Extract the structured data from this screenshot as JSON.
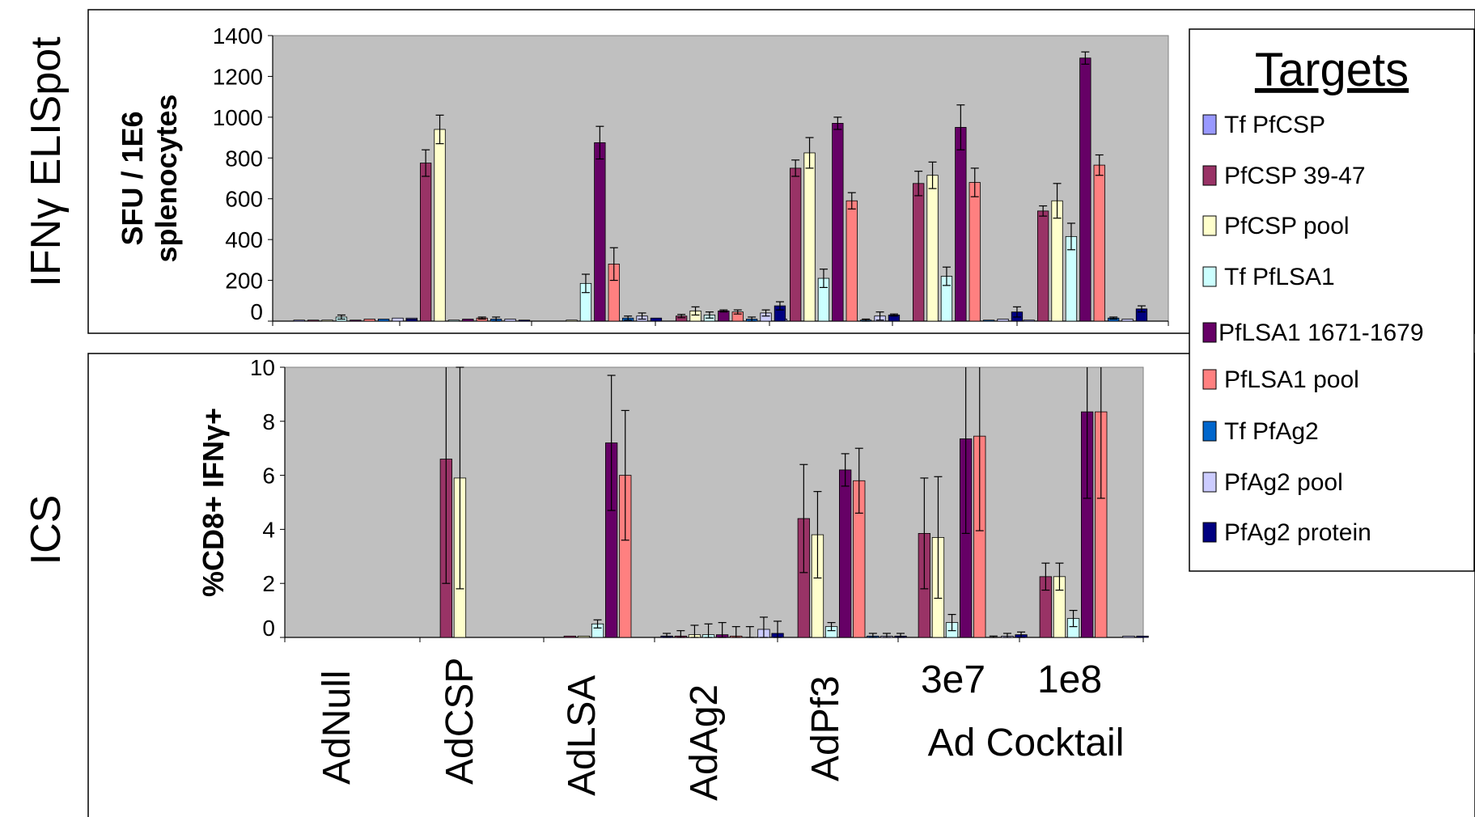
{
  "row_labels": {
    "elispot": "IFNγ ELISpot",
    "ics": "ICS"
  },
  "x_labels": [
    "AdNull",
    "AdCSP",
    "AdLSA",
    "AdAg2",
    "AdPf3",
    "3e7",
    "1e8"
  ],
  "cocktail_label": "Ad Cocktail",
  "legend": {
    "title": "Targets",
    "items": [
      {
        "label": "Tf PfCSP",
        "color": "#9999ff"
      },
      {
        "label": "PfCSP 39-47",
        "color": "#993366"
      },
      {
        "label": "PfCSP pool",
        "color": "#ffffcc"
      },
      {
        "label": "Tf PfLSA1",
        "color": "#ccffff"
      },
      {
        "label": "PfLSA1 1671-1679",
        "color": "#660066"
      },
      {
        "label": "PfLSA1 pool",
        "color": "#ff8080"
      },
      {
        "label": "Tf PfAg2",
        "color": "#0066cc"
      },
      {
        "label": "PfAg2 pool",
        "color": "#ccccff"
      },
      {
        "label": "PfAg2 protein",
        "color": "#000080"
      }
    ]
  },
  "chart_data": [
    {
      "type": "bar",
      "name": "elispot",
      "ylabel": [
        "SFU / 1E6",
        "splenocytes"
      ],
      "ylim": [
        0,
        1400
      ],
      "yticks": [
        0,
        200,
        400,
        600,
        800,
        1000,
        1200,
        1400
      ],
      "categories": [
        "AdNull",
        "AdCSP",
        "AdLSA",
        "AdAg2",
        "AdPf3",
        "3e7",
        "1e8"
      ],
      "series": [
        {
          "name": "Tf PfCSP",
          "values": [
            5,
            15,
            0,
            0,
            10,
            0,
            5
          ],
          "errors": [
            0,
            0,
            0,
            0,
            0,
            0,
            0
          ]
        },
        {
          "name": "PfCSP 39-47",
          "values": [
            5,
            775,
            0,
            25,
            750,
            675,
            540
          ],
          "errors": [
            0,
            65,
            0,
            8,
            40,
            60,
            25
          ]
        },
        {
          "name": "PfCSP pool",
          "values": [
            5,
            940,
            5,
            50,
            825,
            715,
            590
          ],
          "errors": [
            0,
            70,
            0,
            20,
            75,
            65,
            85
          ]
        },
        {
          "name": "Tf PfLSA1",
          "values": [
            20,
            5,
            185,
            30,
            210,
            220,
            415
          ],
          "errors": [
            10,
            0,
            45,
            15,
            45,
            45,
            65
          ]
        },
        {
          "name": "PfLSA1 1671-1679",
          "values": [
            5,
            10,
            875,
            50,
            970,
            950,
            1290
          ],
          "errors": [
            0,
            0,
            80,
            5,
            30,
            110,
            30
          ]
        },
        {
          "name": "PfLSA1 pool",
          "values": [
            10,
            15,
            280,
            45,
            590,
            680,
            765
          ],
          "errors": [
            0,
            5,
            80,
            10,
            40,
            70,
            50
          ]
        },
        {
          "name": "Tf PfAg2",
          "values": [
            10,
            10,
            15,
            10,
            5,
            5,
            15
          ],
          "errors": [
            0,
            10,
            10,
            10,
            5,
            0,
            5
          ]
        },
        {
          "name": "PfAg2 pool",
          "values": [
            15,
            10,
            25,
            40,
            25,
            10,
            10
          ],
          "errors": [
            0,
            0,
            15,
            15,
            20,
            0,
            0
          ]
        },
        {
          "name": "PfAg2 protein",
          "values": [
            10,
            5,
            15,
            75,
            30,
            45,
            60
          ],
          "errors": [
            0,
            0,
            0,
            20,
            5,
            25,
            15
          ]
        }
      ]
    },
    {
      "type": "bar",
      "name": "ics",
      "ylabel": [
        "%CD8+ IFNγ+"
      ],
      "ylim": [
        0,
        10
      ],
      "yticks": [
        0,
        2,
        4,
        6,
        8,
        10
      ],
      "categories": [
        "AdNull",
        "AdCSP",
        "AdLSA",
        "AdAg2",
        "AdPf3",
        "3e7",
        "1e8"
      ],
      "series": [
        {
          "name": "Tf PfCSP",
          "values": [
            0,
            0,
            0,
            0.05,
            0,
            0,
            0
          ],
          "errors": [
            0,
            0,
            0,
            0,
            0,
            0,
            0
          ]
        },
        {
          "name": "PfCSP 39-47",
          "values": [
            0,
            6.6,
            0.05,
            0.05,
            4.4,
            3.85,
            2.25
          ],
          "errors": [
            0,
            4.6,
            0,
            0.2,
            2.0,
            2.05,
            0.5
          ]
        },
        {
          "name": "PfCSP pool",
          "values": [
            0,
            5.9,
            0.05,
            0.1,
            3.8,
            3.7,
            2.25
          ],
          "errors": [
            0,
            4.1,
            0,
            0.35,
            1.6,
            2.25,
            0.5
          ]
        },
        {
          "name": "Tf PfLSA1",
          "values": [
            0,
            0,
            0.5,
            0.1,
            0.4,
            0.55,
            0.7
          ],
          "errors": [
            0,
            0,
            0.15,
            0.4,
            0.15,
            0.3,
            0.3
          ]
        },
        {
          "name": "PfLSA1 1671-1679",
          "values": [
            0,
            0,
            7.2,
            0.1,
            6.2,
            7.35,
            8.35
          ],
          "errors": [
            0,
            0,
            2.5,
            0.45,
            0.6,
            3.5,
            3.2
          ]
        },
        {
          "name": "PfLSA1 pool",
          "values": [
            0,
            0,
            6.0,
            0.05,
            5.8,
            7.45,
            8.35
          ],
          "errors": [
            0,
            0,
            2.4,
            0.35,
            1.2,
            3.5,
            3.2
          ]
        },
        {
          "name": "Tf PfAg2",
          "values": [
            0,
            0,
            0,
            0,
            0.05,
            0,
            0
          ],
          "errors": [
            0,
            0,
            0,
            0.4,
            0.1,
            0.05,
            0
          ]
        },
        {
          "name": "PfAg2 pool",
          "values": [
            0,
            0,
            0,
            0.3,
            0.05,
            0.05,
            0.05
          ],
          "errors": [
            0,
            0,
            0,
            0.45,
            0.1,
            0.1,
            0
          ]
        },
        {
          "name": "PfAg2 protein",
          "values": [
            0,
            0,
            0.05,
            0.15,
            0.05,
            0.1,
            0.05
          ],
          "errors": [
            0,
            0,
            0.1,
            0.45,
            0.1,
            0.1,
            0
          ]
        }
      ]
    }
  ]
}
